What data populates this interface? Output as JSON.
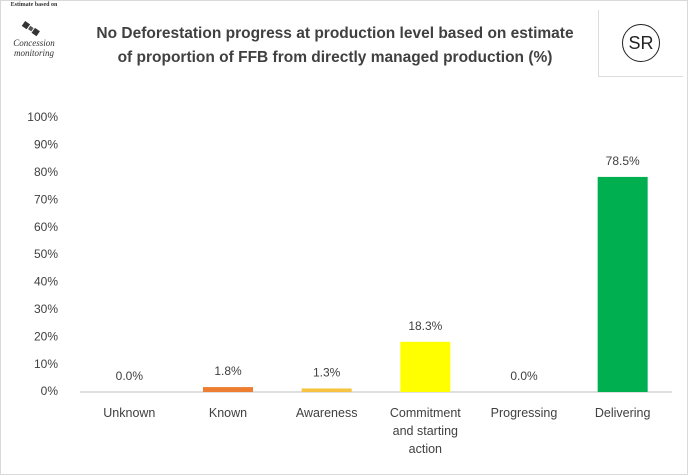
{
  "chart_data": {
    "type": "bar",
    "title": "No Deforestation progress at production level based on estimate of proportion of FFB from directly managed production (%)",
    "badge": "SR",
    "icon_texts": [
      "Estimate based on",
      "Concession",
      "monitoring"
    ],
    "categories": [
      "Unknown",
      "Known",
      "Awareness",
      "Commitment and starting action",
      "Progressing",
      "Delivering"
    ],
    "values": [
      0.0,
      1.8,
      1.3,
      18.3,
      0.0,
      78.5
    ],
    "value_labels": [
      "0.0%",
      "1.8%",
      "1.3%",
      "18.3%",
      "0.0%",
      "78.5%"
    ],
    "colors": [
      "#a5a5a5",
      "#ed7d31",
      "#f6c342",
      "#ffff00",
      "#92d050",
      "#00b050"
    ],
    "ylim": [
      0,
      100
    ],
    "yticks": [
      {
        "value": 0,
        "label": "0%"
      },
      {
        "value": 10,
        "label": "10%"
      },
      {
        "value": 20,
        "label": "20%"
      },
      {
        "value": 30,
        "label": "30%"
      },
      {
        "value": 40,
        "label": "40%"
      },
      {
        "value": 50,
        "label": "50%"
      },
      {
        "value": 60,
        "label": "60%"
      },
      {
        "value": 70,
        "label": "70%"
      },
      {
        "value": 80,
        "label": "80%"
      },
      {
        "value": 90,
        "label": "90%"
      },
      {
        "value": 100,
        "label": "100%"
      }
    ],
    "grid": false
  }
}
